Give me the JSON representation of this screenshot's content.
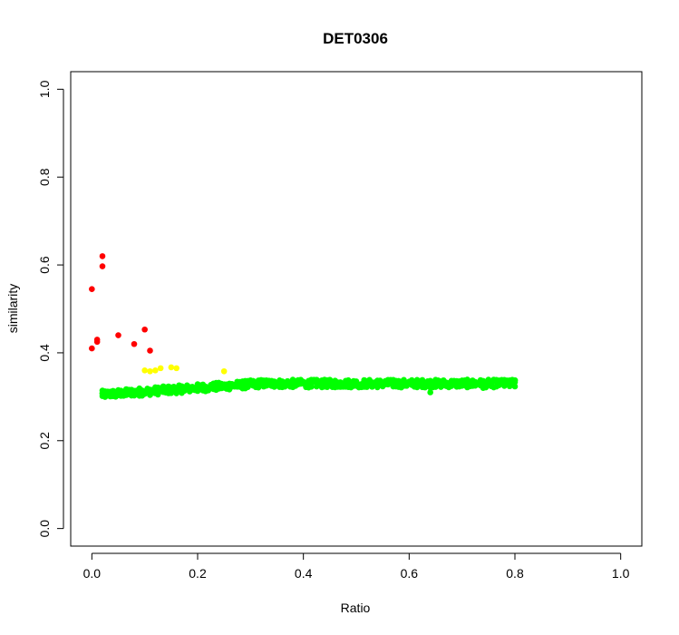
{
  "chart_data": {
    "type": "scatter",
    "title": "DET0306",
    "xlabel": "Ratio",
    "ylabel": "similarity",
    "xlim": [
      -0.04,
      1.04
    ],
    "ylim": [
      -0.04,
      1.04
    ],
    "x_ticks": [
      0.0,
      0.2,
      0.4,
      0.6,
      0.8,
      1.0
    ],
    "x_tick_labels": [
      "0.0",
      "0.2",
      "0.4",
      "0.6",
      "0.8",
      "1.0"
    ],
    "y_ticks": [
      0.0,
      0.2,
      0.4,
      0.6,
      0.8,
      1.0
    ],
    "y_tick_labels": [
      "0.0",
      "0.2",
      "0.4",
      "0.6",
      "0.8",
      "1.0"
    ],
    "grid": false,
    "legend": "none",
    "series": [
      {
        "color": "#ff0000",
        "points": [
          [
            0.0,
            0.41
          ],
          [
            0.0,
            0.545
          ],
          [
            0.01,
            0.43
          ],
          [
            0.01,
            0.425
          ],
          [
            0.02,
            0.62
          ],
          [
            0.02,
            0.597
          ],
          [
            0.05,
            0.44
          ],
          [
            0.08,
            0.42
          ],
          [
            0.1,
            0.453
          ],
          [
            0.11,
            0.405
          ]
        ]
      },
      {
        "color": "#ffff00",
        "points": [
          [
            0.1,
            0.36
          ],
          [
            0.11,
            0.358
          ],
          [
            0.12,
            0.36
          ],
          [
            0.13,
            0.365
          ],
          [
            0.15,
            0.367
          ],
          [
            0.16,
            0.365
          ],
          [
            0.25,
            0.358
          ]
        ]
      },
      {
        "color": "#00ff00",
        "band": {
          "x_start": 0.02,
          "x_end": 0.8,
          "x_step": 0.005,
          "y_start": 0.305,
          "y_plateau": 0.33,
          "y_spread": 0.018,
          "extra_points": [
            [
              0.64,
              0.31
            ],
            [
              0.74,
              0.32
            ],
            [
              0.03,
              0.305
            ]
          ]
        }
      }
    ]
  }
}
